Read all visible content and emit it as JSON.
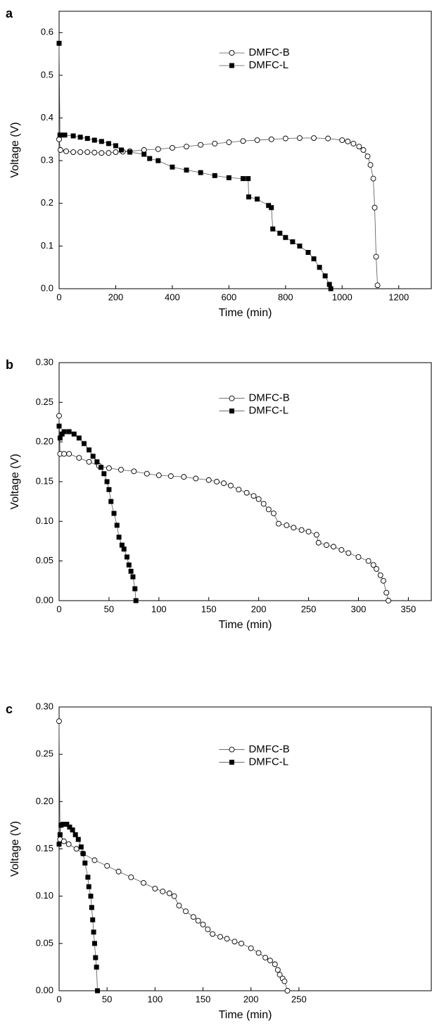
{
  "chart_data": [
    {
      "type": "line",
      "panel_label": "a",
      "xlabel": "Time (min)",
      "ylabel": "Voltage (V)",
      "xlim": [
        0,
        1315
      ],
      "ylim": [
        0,
        0.65
      ],
      "xticks": [
        0,
        200,
        400,
        600,
        800,
        1000,
        1200
      ],
      "yticks": [
        {
          "value": 0,
          "label": "0.0"
        },
        0.1,
        0.2,
        0.3,
        0.4,
        0.5,
        0.6
      ],
      "legend": "upper center",
      "series": [
        {
          "name": "DMFC-B",
          "marker": "open-circle",
          "color": "#000000",
          "x": [
            0,
            5,
            25,
            50,
            75,
            100,
            125,
            150,
            175,
            200,
            225,
            250,
            300,
            350,
            400,
            450,
            500,
            550,
            600,
            650,
            700,
            750,
            800,
            850,
            900,
            950,
            1000,
            1020,
            1040,
            1060,
            1075,
            1090,
            1100,
            1110,
            1115,
            1120,
            1125
          ],
          "values": [
            0.35,
            0.325,
            0.322,
            0.32,
            0.32,
            0.32,
            0.319,
            0.318,
            0.318,
            0.32,
            0.321,
            0.322,
            0.325,
            0.327,
            0.33,
            0.333,
            0.337,
            0.34,
            0.343,
            0.346,
            0.348,
            0.35,
            0.352,
            0.353,
            0.353,
            0.352,
            0.348,
            0.345,
            0.34,
            0.333,
            0.325,
            0.31,
            0.29,
            0.258,
            0.19,
            0.075,
            0.008
          ]
        },
        {
          "name": "DMFC-L",
          "marker": "filled-square",
          "color": "#000000",
          "x": [
            0,
            3,
            20,
            50,
            75,
            100,
            125,
            150,
            175,
            200,
            220,
            250,
            300,
            320,
            350,
            400,
            450,
            500,
            550,
            600,
            650,
            668,
            670,
            700,
            740,
            750,
            755,
            780,
            800,
            825,
            850,
            880,
            900,
            920,
            940,
            955,
            960
          ],
          "values": [
            0.575,
            0.36,
            0.36,
            0.358,
            0.355,
            0.352,
            0.348,
            0.345,
            0.34,
            0.335,
            0.325,
            0.32,
            0.315,
            0.305,
            0.3,
            0.285,
            0.278,
            0.272,
            0.265,
            0.26,
            0.258,
            0.258,
            0.215,
            0.21,
            0.195,
            0.19,
            0.14,
            0.13,
            0.12,
            0.11,
            0.1,
            0.085,
            0.07,
            0.05,
            0.03,
            0.01,
            0.0
          ]
        }
      ]
    },
    {
      "type": "line",
      "panel_label": "b",
      "xlabel": "Time (min)",
      "ylabel": "Voltage (V)",
      "xlim": [
        0,
        373
      ],
      "ylim": [
        0,
        0.3
      ],
      "xticks": [
        0,
        50,
        100,
        150,
        200,
        250,
        300,
        350
      ],
      "yticks": [
        {
          "value": 0,
          "label": "0.00"
        },
        0.05,
        {
          "value": 0.1,
          "label": "0.10"
        },
        0.15,
        {
          "value": 0.2,
          "label": "0.20"
        },
        0.25,
        {
          "value": 0.3,
          "label": "0.30"
        }
      ],
      "legend": "upper center",
      "series": [
        {
          "name": "DMFC-B",
          "marker": "open-circle",
          "color": "#000000",
          "x": [
            0,
            1,
            5,
            10,
            20,
            30,
            40,
            50,
            62,
            75,
            88,
            100,
            112,
            125,
            137,
            150,
            158,
            165,
            172,
            180,
            188,
            195,
            200,
            205,
            210,
            215,
            220,
            228,
            235,
            243,
            250,
            258,
            260,
            268,
            275,
            283,
            290,
            300,
            310,
            315,
            318,
            322,
            325,
            328,
            330
          ],
          "values": [
            0.233,
            0.185,
            0.185,
            0.185,
            0.18,
            0.175,
            0.17,
            0.167,
            0.165,
            0.163,
            0.16,
            0.158,
            0.157,
            0.156,
            0.154,
            0.152,
            0.15,
            0.148,
            0.145,
            0.14,
            0.136,
            0.132,
            0.128,
            0.122,
            0.115,
            0.11,
            0.097,
            0.095,
            0.092,
            0.089,
            0.087,
            0.083,
            0.073,
            0.07,
            0.068,
            0.064,
            0.06,
            0.055,
            0.05,
            0.045,
            0.04,
            0.032,
            0.025,
            0.01,
            0.0
          ]
        },
        {
          "name": "DMFC-L",
          "marker": "filled-square",
          "color": "#000000",
          "x": [
            0,
            1,
            3,
            5,
            10,
            15,
            20,
            25,
            30,
            34,
            38,
            42,
            45,
            48,
            50,
            52,
            55,
            58,
            60,
            63,
            65,
            68,
            70,
            72,
            74,
            76,
            77
          ],
          "values": [
            0.22,
            0.205,
            0.21,
            0.213,
            0.213,
            0.21,
            0.205,
            0.198,
            0.19,
            0.182,
            0.175,
            0.168,
            0.16,
            0.15,
            0.14,
            0.125,
            0.11,
            0.095,
            0.08,
            0.07,
            0.065,
            0.055,
            0.045,
            0.037,
            0.03,
            0.015,
            0.0
          ]
        }
      ]
    },
    {
      "type": "line",
      "panel_label": "c",
      "xlabel": "Time (min)",
      "ylabel": "Voltage (V)",
      "xlim": [
        0,
        388
      ],
      "ylim": [
        0,
        0.3
      ],
      "xticks": [
        0,
        50,
        100,
        150,
        200,
        250
      ],
      "yticks": [
        {
          "value": 0,
          "label": "0.00"
        },
        0.05,
        {
          "value": 0.1,
          "label": "0.10"
        },
        0.15,
        {
          "value": 0.2,
          "label": "0.20"
        },
        0.25,
        {
          "value": 0.3,
          "label": "0.30"
        }
      ],
      "legend": "upper center",
      "series": [
        {
          "name": "DMFC-B",
          "marker": "open-circle",
          "color": "#000000",
          "x": [
            0,
            1,
            5,
            10,
            18,
            25,
            37,
            50,
            62,
            75,
            88,
            100,
            108,
            115,
            120,
            125,
            132,
            140,
            145,
            150,
            155,
            160,
            168,
            175,
            183,
            190,
            200,
            208,
            215,
            220,
            225,
            228,
            230,
            233,
            235,
            238
          ],
          "values": [
            0.285,
            0.16,
            0.158,
            0.155,
            0.15,
            0.145,
            0.138,
            0.132,
            0.126,
            0.12,
            0.114,
            0.108,
            0.105,
            0.103,
            0.1,
            0.09,
            0.084,
            0.078,
            0.074,
            0.07,
            0.065,
            0.06,
            0.057,
            0.055,
            0.052,
            0.05,
            0.045,
            0.04,
            0.035,
            0.032,
            0.028,
            0.022,
            0.017,
            0.013,
            0.01,
            0.0
          ]
        },
        {
          "name": "DMFC-L",
          "marker": "filled-square",
          "color": "#000000",
          "x": [
            0,
            1,
            2,
            4,
            6,
            8,
            11,
            14,
            17,
            20,
            23,
            25,
            27,
            30,
            31,
            33,
            34,
            35,
            36,
            37,
            38,
            39,
            40
          ],
          "values": [
            0.155,
            0.165,
            0.175,
            0.176,
            0.176,
            0.176,
            0.173,
            0.17,
            0.165,
            0.16,
            0.152,
            0.145,
            0.135,
            0.12,
            0.11,
            0.1,
            0.088,
            0.075,
            0.062,
            0.05,
            0.035,
            0.025,
            0.0
          ]
        }
      ]
    }
  ]
}
